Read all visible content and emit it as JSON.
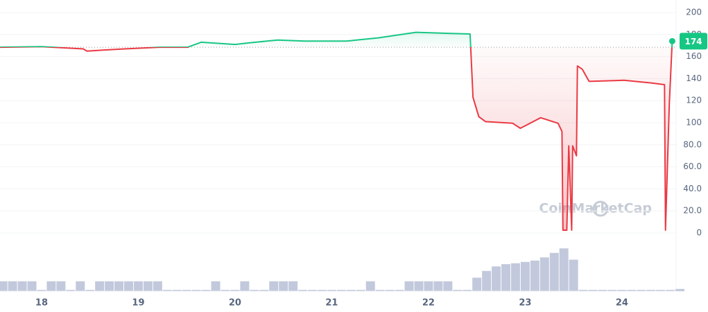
{
  "chart_data": {
    "type": "line",
    "watermark": "CoinMarketCap",
    "x": [
      17.57,
      18.0,
      18.43,
      18.47,
      18.65,
      18.86,
      19.22,
      19.51,
      19.65,
      20.0,
      20.15,
      20.44,
      20.72,
      21.15,
      21.48,
      21.87,
      22.23,
      22.43,
      22.46,
      22.52,
      22.59,
      22.87,
      22.95,
      23.16,
      23.34,
      23.38,
      23.39,
      23.43,
      23.45,
      23.48,
      23.49,
      23.53,
      23.54,
      23.59,
      23.66,
      24.02,
      24.31,
      24.44,
      24.45,
      24.49,
      24.52
    ],
    "series": [
      {
        "values": [
          168.5,
          169,
          167,
          165,
          166,
          167,
          168.5,
          168.5,
          173,
          171,
          172.5,
          175,
          174,
          174,
          177,
          182,
          181,
          180.5,
          123,
          105.5,
          101,
          99.5,
          95,
          104.5,
          99.5,
          92,
          2.5,
          2.5,
          79,
          2.5,
          79,
          70,
          151.5,
          148.5,
          137.5,
          138.5,
          136,
          134.5,
          2.5,
          117,
          174
        ],
        "color_up": "#16c784",
        "color_down": "#ea3943"
      }
    ],
    "baseline": 168.5,
    "last_price": 174,
    "xlim": [
      17.57,
      24.56
    ],
    "xticks": [
      18,
      19,
      20,
      21,
      22,
      23,
      24
    ],
    "ylim": [
      0,
      200
    ],
    "yticks": [
      0,
      {
        "value": 20,
        "label": "20.0"
      },
      {
        "value": 40,
        "label": "40.0"
      },
      {
        "value": 60,
        "label": "60.0"
      },
      {
        "value": 80,
        "label": "80.0"
      },
      100,
      120,
      140,
      160,
      180,
      200
    ],
    "grid": true,
    "volume": {
      "color": "#c3c9dc",
      "vlim": [
        0,
        100
      ],
      "x": [
        17.6,
        17.7,
        17.8,
        17.9,
        18.0,
        18.1,
        18.2,
        18.3,
        18.4,
        18.5,
        18.6,
        18.7,
        18.8,
        18.9,
        19.0,
        19.1,
        19.2,
        19.3,
        19.4,
        19.5,
        19.6,
        19.7,
        19.8,
        19.9,
        20.0,
        20.1,
        20.2,
        20.3,
        20.4,
        20.5,
        20.6,
        20.7,
        20.8,
        20.9,
        21.0,
        21.1,
        21.2,
        21.3,
        21.4,
        21.5,
        21.6,
        21.7,
        21.8,
        21.9,
        22.0,
        22.1,
        22.2,
        22.3,
        22.4,
        22.5,
        22.6,
        22.7,
        22.8,
        22.9,
        23.0,
        23.1,
        23.2,
        23.3,
        23.4,
        23.5,
        23.6,
        23.7,
        23.8,
        23.9,
        24.0,
        24.1,
        24.2,
        24.3,
        24.4,
        24.5,
        24.6
      ],
      "values": [
        22,
        22,
        22,
        22,
        3,
        22,
        22,
        3,
        22,
        3,
        22,
        22,
        22,
        22,
        22,
        22,
        22,
        3,
        3,
        3,
        3,
        3,
        22,
        3,
        3,
        22,
        3,
        3,
        22,
        22,
        22,
        3,
        3,
        3,
        3,
        3,
        3,
        3,
        22,
        3,
        3,
        3,
        22,
        22,
        22,
        22,
        22,
        3,
        3,
        30,
        45,
        55,
        60,
        62,
        65,
        68,
        75,
        85,
        95,
        70,
        3,
        3,
        3,
        3,
        3,
        3,
        3,
        3,
        3,
        3,
        5
      ]
    }
  }
}
